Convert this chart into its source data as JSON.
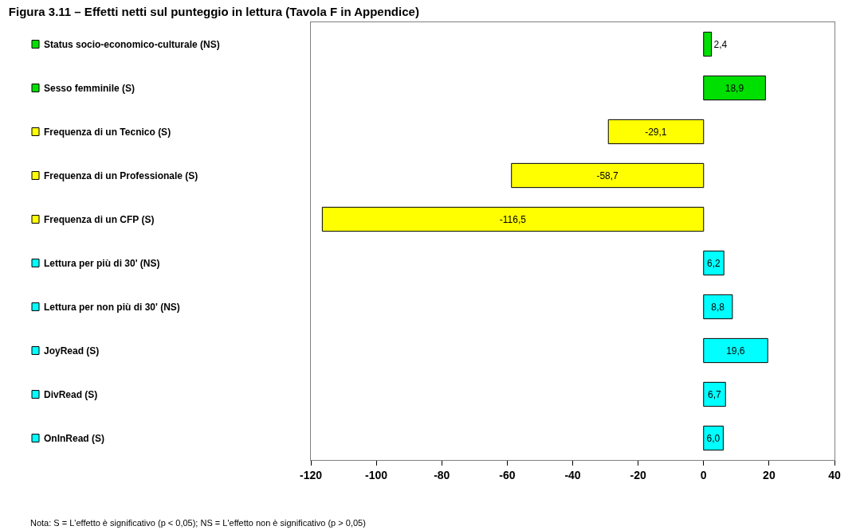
{
  "chart_data": {
    "type": "bar",
    "orientation": "horizontal",
    "title": "Figura 3.11 – Effetti netti sul punteggio in lettura (Tavola F in Appendice)",
    "categories": [
      "Status socio-economico-culturale (NS)",
      "Sesso femminile (S)",
      "Frequenza di un Tecnico (S)",
      "Frequenza di un Professionale (S)",
      "Frequenza di un CFP (S)",
      "Lettura per più di 30' (NS)",
      "Lettura per non più di 30' (NS)",
      "JoyRead (S)",
      "DivRead (S)",
      "OnInRead (S)"
    ],
    "values": [
      2.4,
      18.9,
      -29.1,
      -58.7,
      -116.5,
      6.2,
      8.8,
      19.6,
      6.7,
      6.0
    ],
    "value_labels": [
      "2,4",
      "18,9",
      "-29,1",
      "-58,7",
      "-116,5",
      "6,2",
      "8,8",
      "19,6",
      "6,7",
      "6,0"
    ],
    "colors": [
      "#00e000",
      "#00e000",
      "#ffff00",
      "#ffff00",
      "#ffff00",
      "#00ffff",
      "#00ffff",
      "#00ffff",
      "#00ffff",
      "#00ffff"
    ],
    "xlim": [
      -120,
      40
    ],
    "xticks": [
      -120,
      -100,
      -80,
      -60,
      -40,
      -20,
      0,
      20,
      40
    ],
    "legend": false,
    "annotations": [
      "Nota: S = L'effetto è significativo (p < 0,05); NS = L'effetto non è significativo (p > 0,05)"
    ]
  }
}
